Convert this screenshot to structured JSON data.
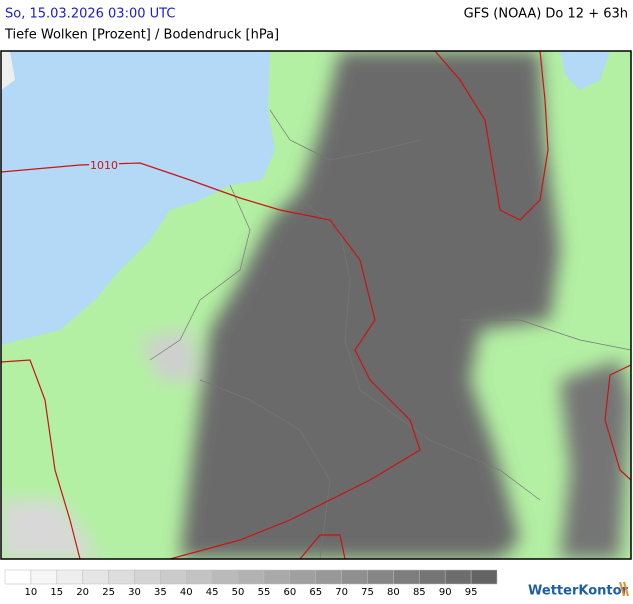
{
  "header": {
    "left": "So, 15.03.2026 03:00 UTC",
    "right": "GFS (NOAA) Do 12 + 63h",
    "subtitle": "Tiefe Wolken [Prozent] / Bodendruck [hPa]"
  },
  "map": {
    "isobar_labels": [
      "1010"
    ]
  },
  "legend": {
    "labels": [
      10,
      15,
      20,
      25,
      30,
      35,
      40,
      45,
      50,
      55,
      60,
      65,
      70,
      75,
      80,
      85,
      90,
      95
    ]
  },
  "logo": "WetterKontor"
}
